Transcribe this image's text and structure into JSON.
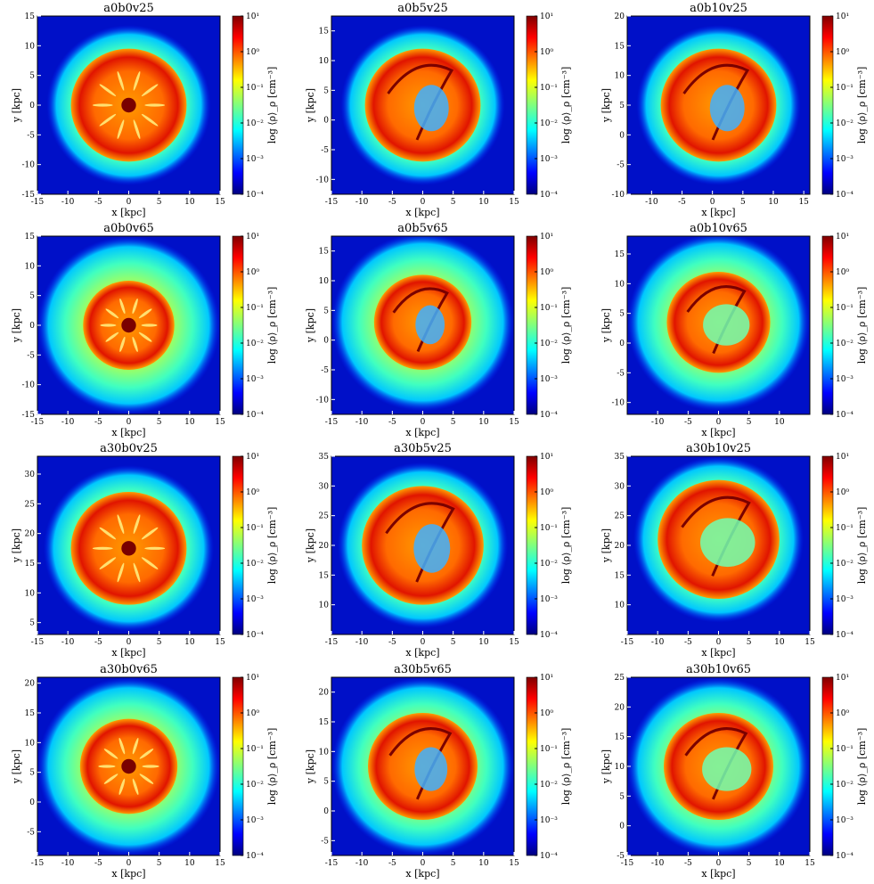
{
  "figure": {
    "colormap": "jet",
    "colorbar": {
      "label": "log ⟨ρ⟩_ρ [cm⁻³]",
      "range_log10": [
        -4,
        1
      ],
      "ticks": [
        "10¹",
        "10⁰",
        "10⁻¹",
        "10⁻²",
        "10⁻³",
        "10⁻⁴"
      ]
    }
  },
  "chart_data": [
    {
      "type": "heatmap",
      "title": "a0b0v25",
      "xlabel": "x [kpc]",
      "ylabel": "y [kpc]",
      "xlim": [
        -15,
        15
      ],
      "ylim": [
        -15,
        15
      ],
      "xticks": [
        -15,
        -10,
        -5,
        0,
        5,
        10,
        15
      ],
      "yticks": [
        -15,
        -10,
        -5,
        0,
        5,
        10,
        15
      ],
      "center": [
        0,
        0
      ],
      "halo_radius": 13.5,
      "disk_radius": 9.5,
      "morphology": "ring"
    },
    {
      "type": "heatmap",
      "title": "a0b5v25",
      "xlabel": "x [kpc]",
      "ylabel": "y [kpc]",
      "xlim": [
        -15,
        15
      ],
      "ylim": [
        -12.5,
        17.5
      ],
      "xticks": [
        -15,
        -10,
        -5,
        0,
        5,
        10,
        15
      ],
      "yticks": [
        -10,
        -5,
        0,
        5,
        10,
        15
      ],
      "center": [
        0,
        2.5
      ],
      "halo_radius": 13.5,
      "disk_radius": 9.5,
      "morphology": "swirl"
    },
    {
      "type": "heatmap",
      "title": "a0b10v25",
      "xlabel": "x [kpc]",
      "ylabel": "y [kpc]",
      "xlim": [
        -14,
        16
      ],
      "ylim": [
        -10,
        20
      ],
      "xticks": [
        -10,
        -5,
        0,
        5,
        10,
        15
      ],
      "yticks": [
        -10,
        -5,
        0,
        5,
        10,
        15,
        20
      ],
      "center": [
        1,
        5
      ],
      "halo_radius": 13.5,
      "disk_radius": 9.5,
      "morphology": "swirl"
    },
    {
      "type": "heatmap",
      "title": "a0b0v65",
      "xlabel": "x [kpc]",
      "ylabel": "y [kpc]",
      "xlim": [
        -15,
        15
      ],
      "ylim": [
        -15,
        15
      ],
      "xticks": [
        -15,
        -10,
        -5,
        0,
        5,
        10,
        15
      ],
      "yticks": [
        -15,
        -10,
        -5,
        0,
        5,
        10,
        15
      ],
      "center": [
        0,
        0
      ],
      "halo_radius": 15,
      "disk_radius": 7.5,
      "morphology": "ring"
    },
    {
      "type": "heatmap",
      "title": "a0b5v65",
      "xlabel": "x [kpc]",
      "ylabel": "y [kpc]",
      "xlim": [
        -15,
        15
      ],
      "ylim": [
        -12.5,
        17.5
      ],
      "xticks": [
        -15,
        -10,
        -5,
        0,
        5,
        10,
        15
      ],
      "yticks": [
        -10,
        -5,
        0,
        5,
        10,
        15
      ],
      "center": [
        0,
        3
      ],
      "halo_radius": 15,
      "disk_radius": 8,
      "morphology": "swirl"
    },
    {
      "type": "heatmap",
      "title": "a0b10v65",
      "xlabel": "x [kpc]",
      "ylabel": "y [kpc]",
      "xlim": [
        -15,
        15
      ],
      "ylim": [
        -12,
        18
      ],
      "xticks": [
        -10,
        -5,
        0,
        5,
        10
      ],
      "yticks": [
        -10,
        -5,
        0,
        5,
        10,
        15
      ],
      "center": [
        0,
        3.5
      ],
      "halo_radius": 15,
      "disk_radius": 8.5,
      "morphology": "open"
    },
    {
      "type": "heatmap",
      "title": "a30b0v25",
      "xlabel": "x [kpc]",
      "ylabel": "y [kpc]",
      "xlim": [
        -15,
        15
      ],
      "ylim": [
        3,
        33
      ],
      "xticks": [
        -15,
        -10,
        -5,
        0,
        5,
        10,
        15
      ],
      "yticks": [
        5,
        10,
        15,
        20,
        25,
        30
      ],
      "center": [
        0,
        17.5
      ],
      "halo_radius": 14,
      "disk_radius": 9.5,
      "morphology": "ring"
    },
    {
      "type": "heatmap",
      "title": "a30b5v25",
      "xlabel": "x [kpc]",
      "ylabel": "y [kpc]",
      "xlim": [
        -15,
        15
      ],
      "ylim": [
        5,
        35
      ],
      "xticks": [
        -15,
        -10,
        -5,
        0,
        5,
        10,
        15
      ],
      "yticks": [
        10,
        15,
        20,
        25,
        30,
        35
      ],
      "center": [
        0,
        20
      ],
      "halo_radius": 14,
      "disk_radius": 10,
      "morphology": "swirl"
    },
    {
      "type": "heatmap",
      "title": "a30b10v25",
      "xlabel": "x [kpc]",
      "ylabel": "y [kpc]",
      "xlim": [
        -15,
        15
      ],
      "ylim": [
        5,
        35
      ],
      "xticks": [
        -15,
        -10,
        -5,
        0,
        5,
        10,
        15
      ],
      "yticks": [
        10,
        15,
        20,
        25,
        30,
        35
      ],
      "center": [
        0,
        21
      ],
      "halo_radius": 14,
      "disk_radius": 10,
      "morphology": "open"
    },
    {
      "type": "heatmap",
      "title": "a30b0v65",
      "xlabel": "x [kpc]",
      "ylabel": "y [kpc]",
      "xlim": [
        -15,
        15
      ],
      "ylim": [
        -9,
        21
      ],
      "xticks": [
        -15,
        -10,
        -5,
        0,
        5,
        10,
        15
      ],
      "yticks": [
        -5,
        0,
        5,
        10,
        15,
        20
      ],
      "center": [
        0,
        6
      ],
      "halo_radius": 15,
      "disk_radius": 8,
      "morphology": "ring"
    },
    {
      "type": "heatmap",
      "title": "a30b5v65",
      "xlabel": "x [kpc]",
      "ylabel": "y [kpc]",
      "xlim": [
        -15,
        15
      ],
      "ylim": [
        -7.5,
        22.5
      ],
      "xticks": [
        -15,
        -10,
        -5,
        0,
        5,
        10,
        15
      ],
      "yticks": [
        -5,
        0,
        5,
        10,
        15,
        20
      ],
      "center": [
        0,
        7.5
      ],
      "halo_radius": 15,
      "disk_radius": 9,
      "morphology": "swirl"
    },
    {
      "type": "heatmap",
      "title": "a30b10v65",
      "xlabel": "x [kpc]",
      "ylabel": "y [kpc]",
      "xlim": [
        -15,
        15
      ],
      "ylim": [
        -5,
        25
      ],
      "xticks": [
        -15,
        -10,
        -5,
        0,
        5,
        10,
        15
      ],
      "yticks": [
        -5,
        0,
        5,
        10,
        15,
        20,
        25
      ],
      "center": [
        0,
        10
      ],
      "halo_radius": 15,
      "disk_radius": 9,
      "morphology": "open"
    }
  ]
}
